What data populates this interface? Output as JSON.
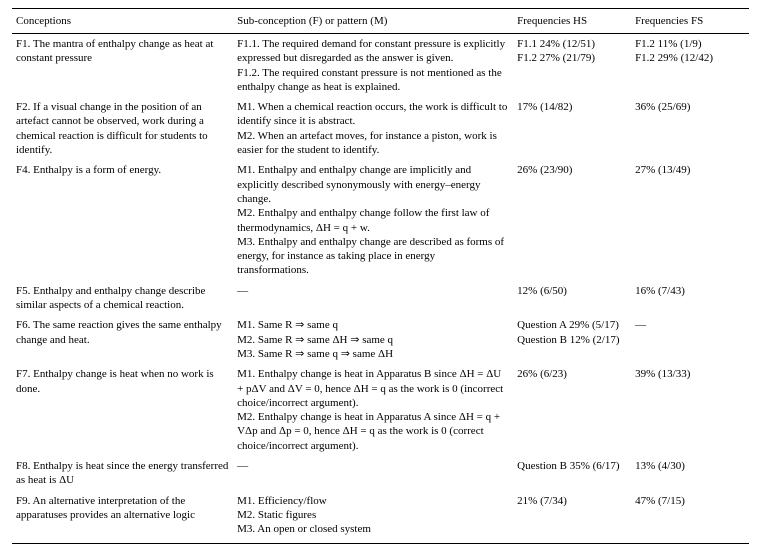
{
  "headers": {
    "conceptions": "Conceptions",
    "sub": "Sub-conception (F) or pattern (M)",
    "hs": "Frequencies HS",
    "fs": "Frequencies FS"
  },
  "rows": [
    {
      "conceptions": "F1. The mantra of enthalpy change as heat at constant pressure",
      "sub": "F1.1. The required demand for constant pressure is explicitly expressed but disregarded as the answer is given.\nF1.2. The required constant pressure is not mentioned as the enthalpy change as heat is explained.",
      "hs": "F1.1 24% (12/51)\nF1.2 27% (21/79)",
      "fs": "F1.2 11% (1/9)\nF1.2 29% (12/42)"
    },
    {
      "conceptions": "F2. If a visual change in the position of an artefact cannot be observed, work during a chemical reaction is difficult for students to identify.",
      "sub": "M1. When a chemical reaction occurs, the work is difficult to identify since it is abstract.\nM2. When an artefact moves, for instance a piston, work is easier for the student to identify.",
      "hs": "17% (14/82)",
      "fs": "36% (25/69)"
    },
    {
      "conceptions": "F4. Enthalpy is a form of energy.",
      "sub": "M1. Enthalpy and enthalpy change are implicitly and explicitly described synonymously with energy–energy change.\nM2. Enthalpy and enthalpy change follow the first law of thermodynamics, ΔH = q + w.\nM3. Enthalpy and enthalpy change are described as forms of energy, for instance as taking place in energy transformations.",
      "hs": "26% (23/90)",
      "fs": "27% (13/49)"
    },
    {
      "conceptions": "F5. Enthalpy and enthalpy change describe similar aspects of a chemical reaction.",
      "sub": "—",
      "hs": "12% (6/50)",
      "fs": "16% (7/43)"
    },
    {
      "conceptions": "F6. The same reaction gives the same enthalpy change and heat.",
      "sub": "M1. Same R ⇒ same q\nM2. Same R ⇒ same ΔH ⇒ same q\nM3. Same R ⇒ same q ⇒ same ΔH",
      "hs": "Question A 29% (5/17)\nQuestion B 12% (2/17)",
      "fs": "—"
    },
    {
      "conceptions": "F7. Enthalpy change is heat when no work is done.",
      "sub": "M1. Enthalpy change is heat in Apparatus B since ΔH = ΔU + pΔV and ΔV = 0, hence ΔH = q as the work is 0 (incorrect choice/incorrect argument).\nM2. Enthalpy change is heat in Apparatus A since ΔH = q + VΔp and Δp = 0, hence ΔH = q as the work is 0 (correct choice/incorrect argument).",
      "hs": "26% (6/23)",
      "fs": "39% (13/33)"
    },
    {
      "conceptions": "F8. Enthalpy is heat since the energy transferred as heat is ΔU",
      "sub": "—",
      "hs": "Question B 35% (6/17)",
      "fs": "13% (4/30)"
    },
    {
      "conceptions": "F9. An alternative interpretation of the apparatuses provides an alternative logic",
      "sub": "M1. Efficiency/flow\nM2. Static figures\nM3. An open or closed system",
      "hs": "21% (7/34)",
      "fs": "47% (7/15)"
    }
  ]
}
